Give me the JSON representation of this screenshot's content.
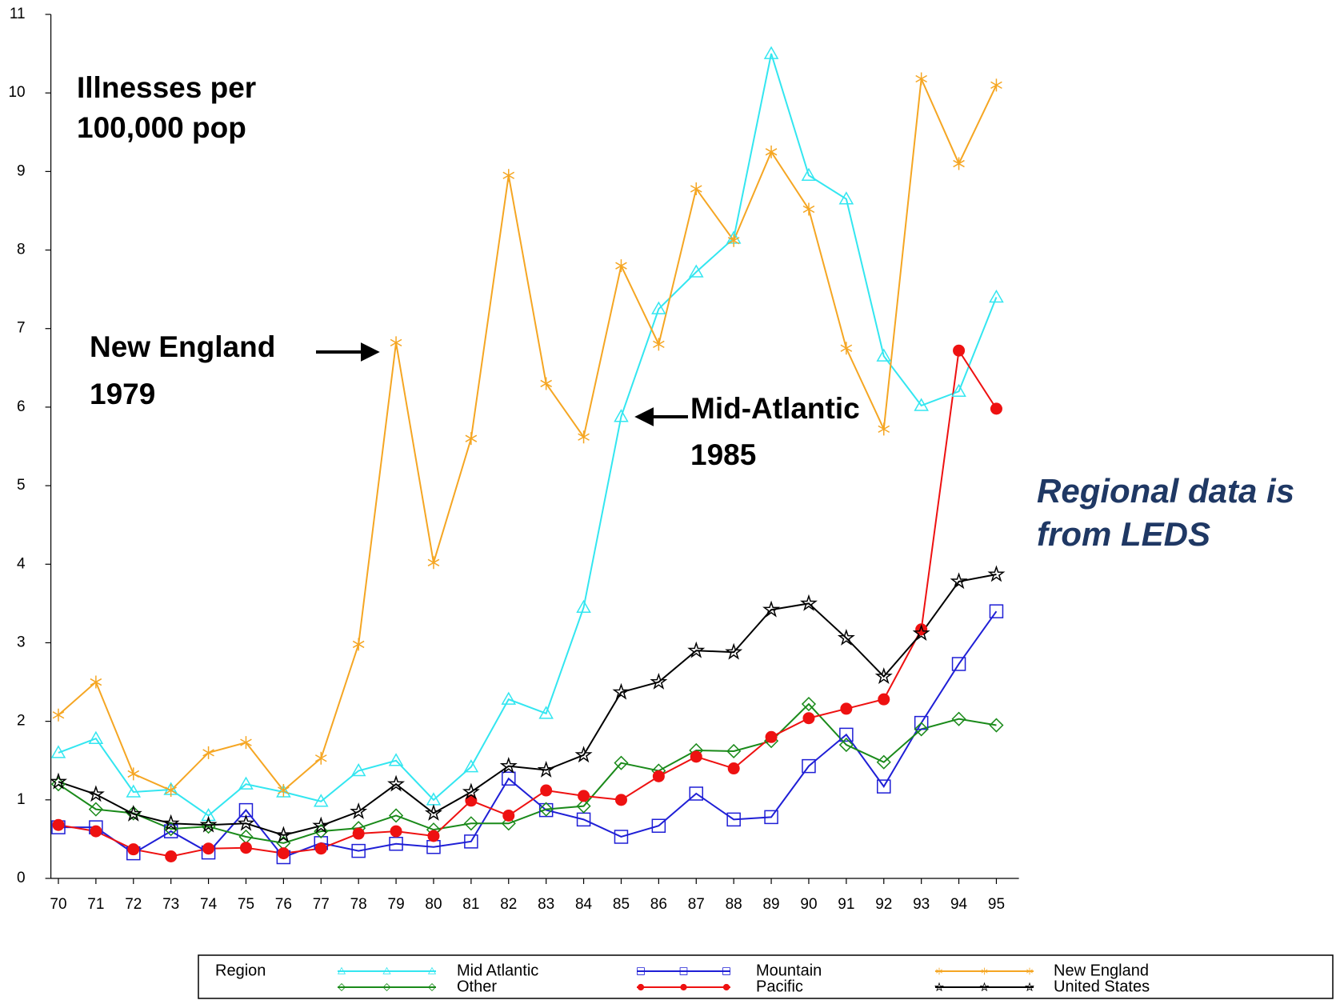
{
  "chart_data": {
    "type": "line",
    "annotations": {
      "ylabel": [
        "Illnesses per",
        "100,000 pop"
      ],
      "new_england": [
        "New England",
        "1979"
      ],
      "mid_atlantic": [
        "Mid-Atlantic",
        "1985"
      ],
      "source": [
        "Regional data is",
        "from LEDS"
      ]
    },
    "legend_title": "Region",
    "x": [
      70,
      71,
      72,
      73,
      74,
      75,
      76,
      77,
      78,
      79,
      80,
      81,
      82,
      83,
      84,
      85,
      86,
      87,
      88,
      89,
      90,
      91,
      92,
      93,
      94,
      95
    ],
    "xlim": [
      69.8,
      95.6
    ],
    "xticks": [
      70,
      71,
      72,
      73,
      74,
      75,
      76,
      77,
      78,
      79,
      80,
      81,
      82,
      83,
      84,
      85,
      86,
      87,
      88,
      89,
      90,
      91,
      92,
      93,
      94,
      95
    ],
    "ylim": [
      0,
      11
    ],
    "yticks": [
      0,
      1,
      2,
      3,
      4,
      5,
      6,
      7,
      8,
      9,
      10,
      11
    ],
    "series": [
      {
        "name": "Mid Atlantic",
        "color": "#33e6f0",
        "marker": "triangle",
        "values": [
          1.6,
          1.78,
          1.1,
          1.13,
          0.8,
          1.2,
          1.1,
          0.98,
          1.37,
          1.5,
          1.0,
          1.42,
          2.28,
          2.1,
          3.45,
          5.88,
          7.25,
          7.72,
          8.15,
          10.5,
          8.95,
          8.65,
          6.65,
          6.02,
          6.2,
          7.4
        ]
      },
      {
        "name": "Mountain",
        "color": "#1f1fd6",
        "marker": "square",
        "values": [
          0.65,
          0.65,
          0.32,
          0.6,
          0.33,
          0.87,
          0.27,
          0.45,
          0.35,
          0.44,
          0.4,
          0.47,
          1.27,
          0.87,
          0.75,
          0.53,
          0.67,
          1.08,
          0.75,
          0.78,
          1.43,
          1.83,
          1.17,
          1.98,
          2.73,
          3.4
        ]
      },
      {
        "name": "New England",
        "color": "#f5a623",
        "marker": "asterisk",
        "values": [
          2.08,
          2.5,
          1.33,
          1.12,
          1.6,
          1.73,
          1.12,
          1.53,
          2.98,
          6.82,
          4.02,
          5.6,
          8.95,
          6.3,
          5.62,
          7.8,
          6.8,
          8.78,
          8.12,
          9.25,
          8.52,
          6.75,
          5.72,
          10.18,
          9.1,
          10.1
        ]
      },
      {
        "name": "Other",
        "color": "#1a8a1a",
        "marker": "diamond",
        "values": [
          1.2,
          0.88,
          0.83,
          0.63,
          0.66,
          0.53,
          0.45,
          0.6,
          0.64,
          0.8,
          0.62,
          0.7,
          0.7,
          0.88,
          0.92,
          1.47,
          1.37,
          1.63,
          1.62,
          1.75,
          2.22,
          1.7,
          1.48,
          1.9,
          2.03,
          1.95
        ]
      },
      {
        "name": "Pacific",
        "color": "#ee1111",
        "marker": "circle",
        "values": [
          0.68,
          0.6,
          0.37,
          0.28,
          0.38,
          0.39,
          0.32,
          0.38,
          0.57,
          0.6,
          0.54,
          0.99,
          0.8,
          1.12,
          1.05,
          1.0,
          1.3,
          1.55,
          1.4,
          1.8,
          2.04,
          2.16,
          2.28,
          3.17,
          6.72,
          5.98
        ]
      },
      {
        "name": "United States",
        "color": "#000000",
        "marker": "star",
        "values": [
          1.23,
          1.07,
          0.82,
          0.7,
          0.68,
          0.7,
          0.55,
          0.67,
          0.85,
          1.2,
          0.83,
          1.1,
          1.43,
          1.38,
          1.57,
          2.37,
          2.5,
          2.9,
          2.88,
          3.42,
          3.5,
          3.06,
          2.57,
          3.12,
          3.78,
          3.87
        ]
      }
    ]
  }
}
